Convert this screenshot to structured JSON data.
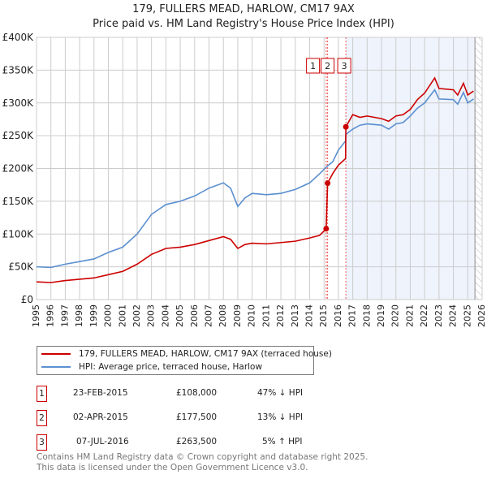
{
  "chart_data": {
    "type": "line",
    "title": "179, FULLERS MEAD, HARLOW, CM17 9AX",
    "subtitle": "Price paid vs. HM Land Registry's House Price Index (HPI)",
    "xlim": [
      1995,
      2026
    ],
    "ylim": [
      0,
      400000
    ],
    "x_ticks": [
      1995,
      1996,
      1997,
      1998,
      1999,
      2000,
      2001,
      2002,
      2003,
      2004,
      2005,
      2006,
      2007,
      2008,
      2009,
      2010,
      2011,
      2012,
      2013,
      2014,
      2015,
      2016,
      2017,
      2018,
      2019,
      2020,
      2021,
      2022,
      2023,
      2024,
      2025,
      2026
    ],
    "y_ticks": [
      {
        "v": 0,
        "label": "£0"
      },
      {
        "v": 50000,
        "label": "£50K"
      },
      {
        "v": 100000,
        "label": "£100K"
      },
      {
        "v": 150000,
        "label": "£150K"
      },
      {
        "v": 200000,
        "label": "£200K"
      },
      {
        "v": 250000,
        "label": "£250K"
      },
      {
        "v": 300000,
        "label": "£300K"
      },
      {
        "v": 350000,
        "label": "£350K"
      },
      {
        "v": 400000,
        "label": "£400K"
      }
    ],
    "grid": true,
    "series": [
      {
        "name": "179, FULLERS MEAD, HARLOW, CM17 9AX (terraced house)",
        "color": "#cc0000",
        "x": [
          1995,
          1996,
          1997,
          1998,
          1999,
          2000,
          2001,
          2002,
          2003,
          2004,
          2005,
          2006,
          2007,
          2008,
          2008.5,
          2009,
          2009.5,
          2010,
          2011,
          2012,
          2013,
          2014,
          2014.7,
          2015.15,
          2015.25,
          2015.6,
          2016,
          2016.5,
          2016.52,
          2017,
          2017.5,
          2018,
          2019,
          2019.5,
          2020,
          2020.5,
          2021,
          2021.5,
          2022,
          2022.7,
          2023,
          2024,
          2024.3,
          2024.7,
          2025,
          2025.4
        ],
        "y": [
          27000,
          26000,
          29000,
          31000,
          33000,
          38000,
          43000,
          54000,
          69000,
          78000,
          80000,
          84000,
          90000,
          96000,
          92000,
          78000,
          84000,
          86000,
          85000,
          87000,
          89000,
          94000,
          98000,
          108000,
          177500,
          192000,
          205000,
          215000,
          263500,
          282000,
          278000,
          280000,
          276000,
          272000,
          280000,
          282000,
          290000,
          305000,
          315000,
          338000,
          322000,
          320000,
          312000,
          330000,
          312000,
          318000
        ]
      },
      {
        "name": "HPI: Average price, terraced house, Harlow",
        "color": "#5b8fd0",
        "x": [
          1995,
          1996,
          1997,
          1998,
          1999,
          2000,
          2001,
          2002,
          2003,
          2004,
          2005,
          2006,
          2007,
          2008,
          2008.5,
          2009,
          2009.5,
          2010,
          2011,
          2012,
          2013,
          2014,
          2014.7,
          2015.15,
          2015.25,
          2015.6,
          2016,
          2016.5,
          2016.52,
          2017,
          2017.5,
          2018,
          2019,
          2019.5,
          2020,
          2020.5,
          2021,
          2021.5,
          2022,
          2022.7,
          2023,
          2024,
          2024.3,
          2024.7,
          2025,
          2025.4
        ],
        "y": [
          50000,
          49000,
          54000,
          58000,
          62000,
          72000,
          80000,
          100000,
          130000,
          145000,
          150000,
          158000,
          170000,
          178000,
          170000,
          142000,
          155000,
          162000,
          160000,
          162000,
          168000,
          178000,
          192000,
          202000,
          204000,
          210000,
          228000,
          242000,
          252000,
          260000,
          266000,
          268000,
          266000,
          260000,
          268000,
          270000,
          280000,
          292000,
          300000,
          320000,
          306000,
          305000,
          298000,
          316000,
          300000,
          306000
        ]
      }
    ],
    "sales": [
      {
        "id": "1",
        "x": 2015.15,
        "y": 108000,
        "date": "23-FEB-2015",
        "price": "£108,000",
        "hpi": "47% ↓ HPI"
      },
      {
        "id": "2",
        "x": 2015.25,
        "y": 177500,
        "date": "02-APR-2015",
        "price": "£177,500",
        "hpi": "13% ↓ HPI"
      },
      {
        "id": "3",
        "x": 2016.52,
        "y": 263500,
        "date": "07-JUL-2016",
        "price": "£263,500",
        "hpi": "5% ↑ HPI"
      }
    ],
    "forecast_start": 2025.5,
    "legend_position": "below"
  },
  "footer": {
    "line1": "Contains HM Land Registry data © Crown copyright and database right 2025.",
    "line2": "This data is licensed under the Open Government Licence v3.0."
  }
}
